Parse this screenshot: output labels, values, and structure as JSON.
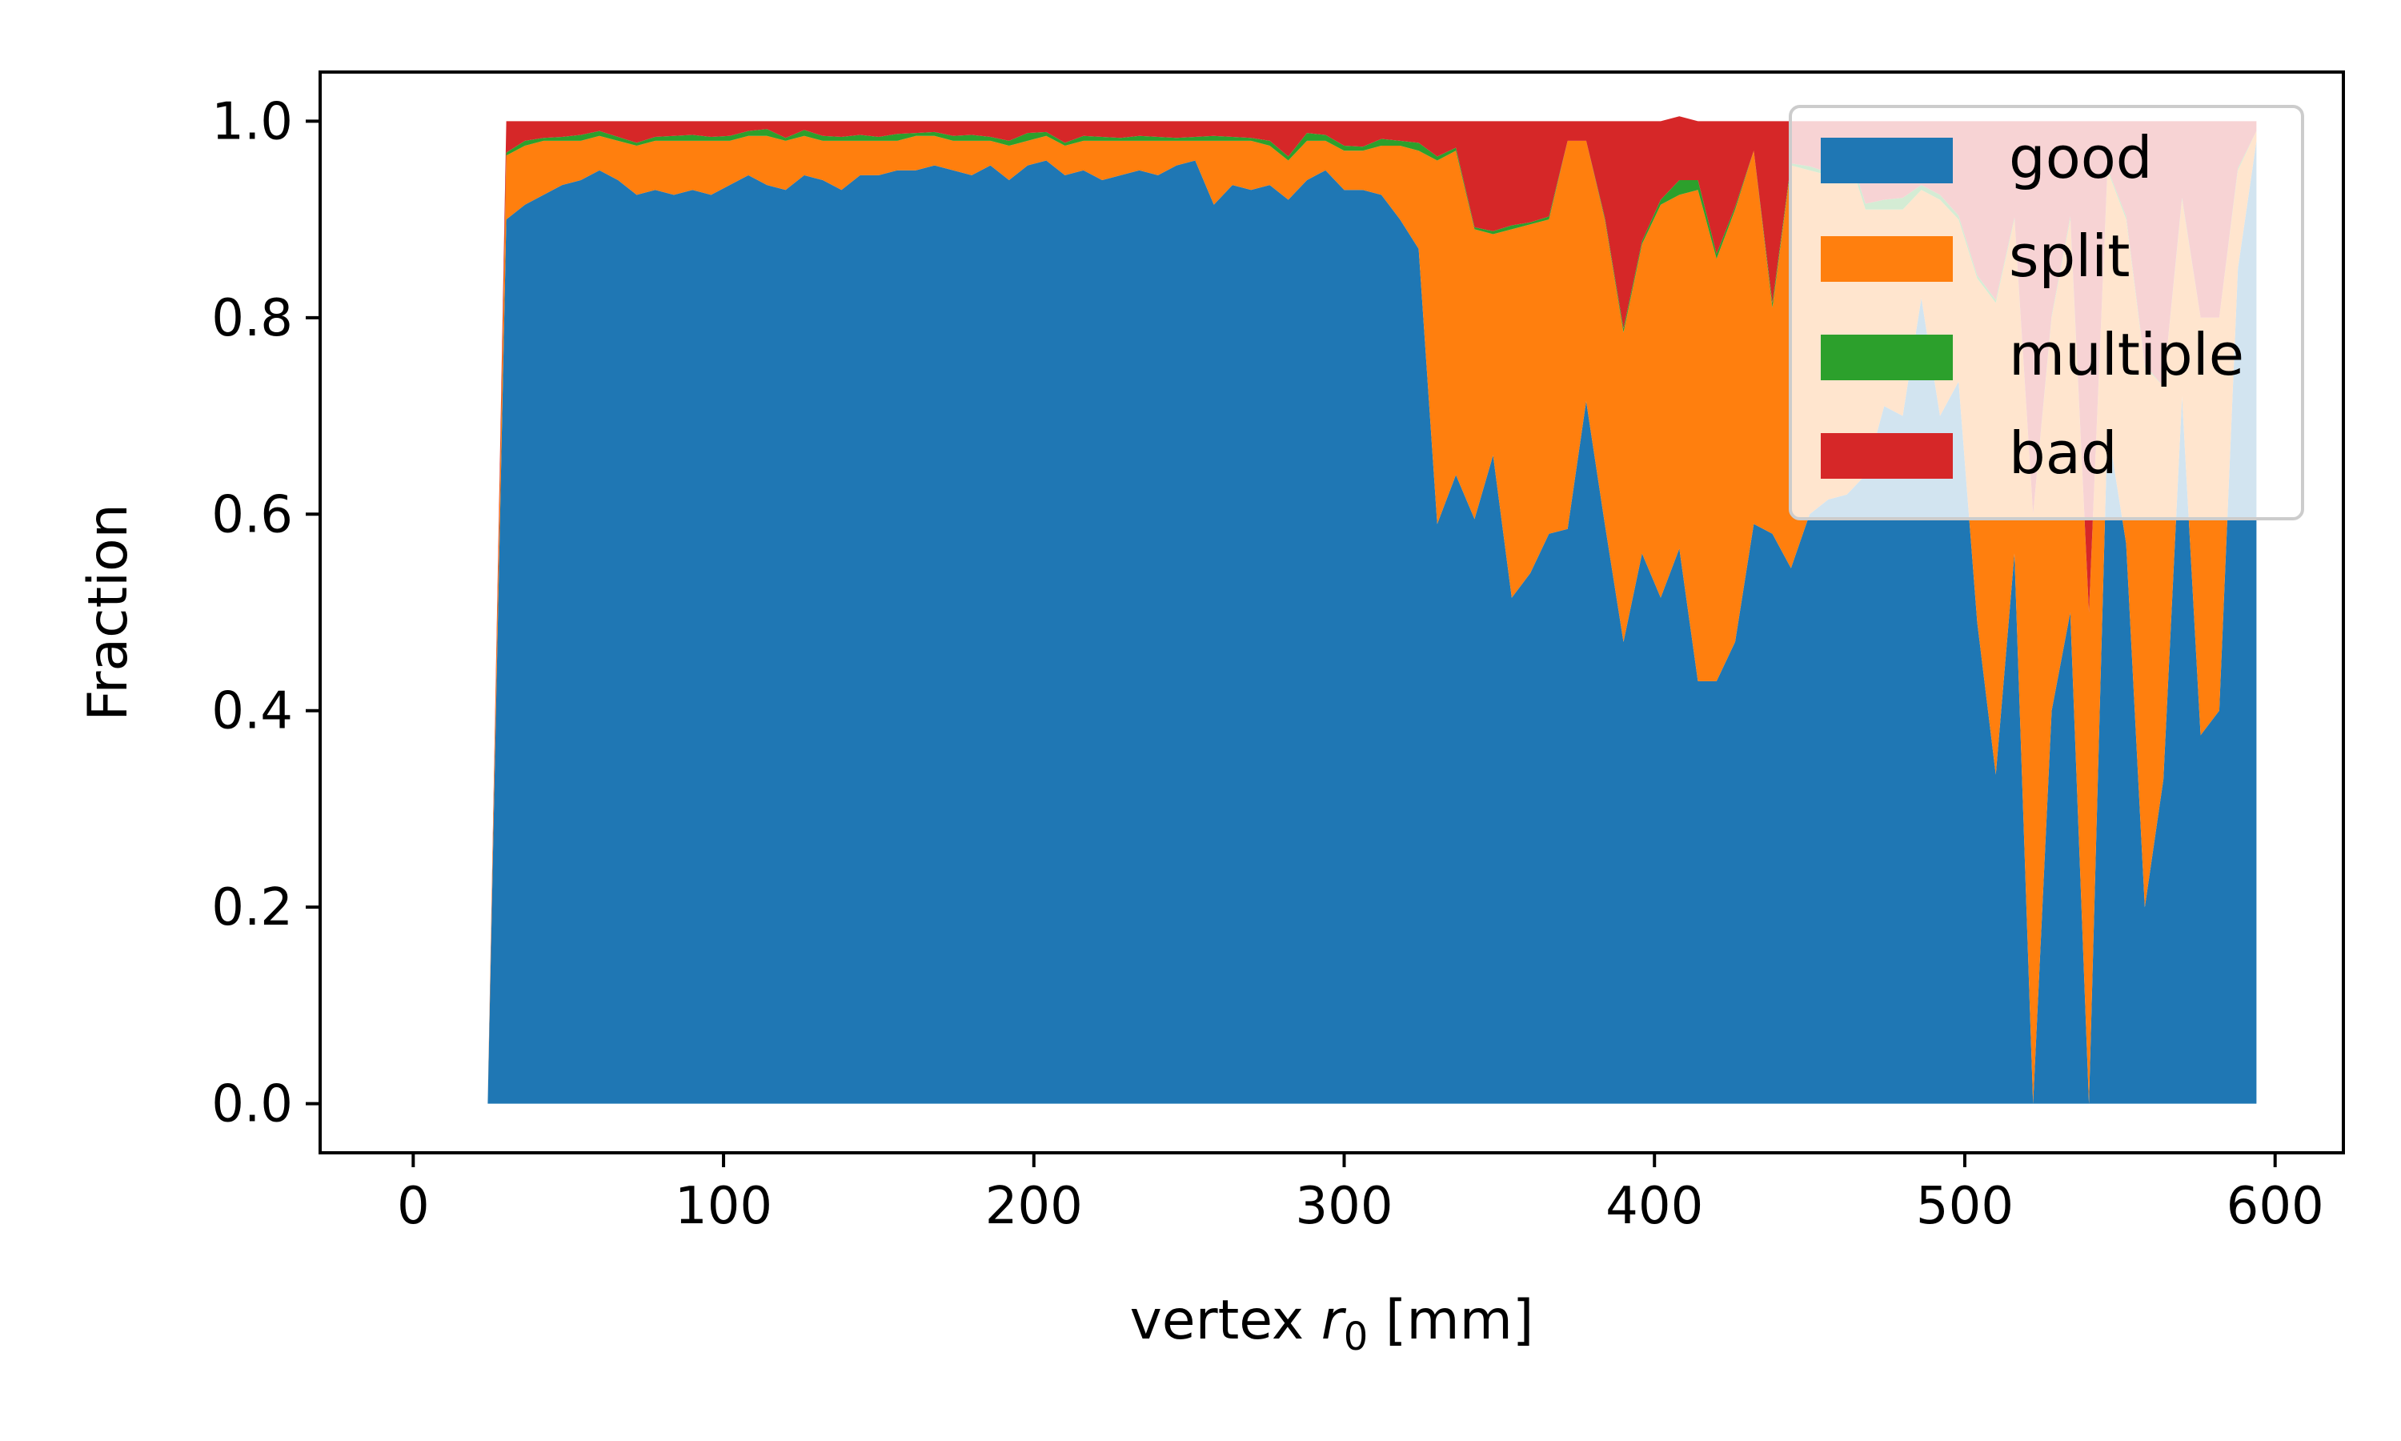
{
  "chart_data": {
    "type": "area",
    "stacked": true,
    "xlabel_main": "vertex ",
    "xlabel_var": "r",
    "xlabel_sub": "0",
    "xlabel_unit": " [mm]",
    "ylabel": "Fraction",
    "xlim": [
      -30,
      622
    ],
    "ylim": [
      -0.05,
      1.05
    ],
    "xticks": [
      0,
      100,
      200,
      300,
      400,
      500,
      600
    ],
    "yticks": [
      "0.0",
      "0.2",
      "0.4",
      "0.6",
      "0.8",
      "1.0"
    ],
    "grid": false,
    "legend_position": "top-right",
    "x": [
      24,
      30,
      36,
      42,
      48,
      54,
      60,
      66,
      72,
      78,
      84,
      90,
      96,
      102,
      108,
      114,
      120,
      126,
      132,
      138,
      144,
      150,
      156,
      162,
      168,
      174,
      180,
      186,
      192,
      198,
      204,
      210,
      216,
      222,
      228,
      234,
      240,
      246,
      252,
      258,
      264,
      270,
      276,
      282,
      288,
      294,
      300,
      306,
      312,
      318,
      324,
      330,
      336,
      342,
      348,
      354,
      360,
      366,
      372,
      378,
      384,
      390,
      396,
      402,
      408,
      414,
      420,
      426,
      432,
      438,
      444,
      450,
      456,
      462,
      468,
      474,
      480,
      486,
      492,
      498,
      504,
      510,
      516,
      522,
      528,
      534,
      540,
      546,
      552,
      558,
      564,
      570,
      576,
      582,
      588,
      594
    ],
    "series": [
      {
        "name": "good",
        "color": "#1f77b4",
        "values": [
          0,
          0.9,
          0.915,
          0.925,
          0.935,
          0.94,
          0.95,
          0.94,
          0.925,
          0.93,
          0.925,
          0.93,
          0.925,
          0.935,
          0.945,
          0.935,
          0.93,
          0.945,
          0.94,
          0.93,
          0.945,
          0.945,
          0.95,
          0.95,
          0.955,
          0.95,
          0.945,
          0.955,
          0.94,
          0.955,
          0.96,
          0.945,
          0.95,
          0.94,
          0.945,
          0.95,
          0.945,
          0.955,
          0.96,
          0.915,
          0.935,
          0.93,
          0.935,
          0.92,
          0.94,
          0.95,
          0.93,
          0.93,
          0.925,
          0.9,
          0.87,
          0.59,
          0.64,
          0.595,
          0.66,
          0.515,
          0.54,
          0.58,
          0.585,
          0.715,
          0.59,
          0.47,
          0.56,
          0.515,
          0.565,
          0.43,
          0.43,
          0.47,
          0.59,
          0.58,
          0.545,
          0.6,
          0.615,
          0.62,
          0.64,
          0.71,
          0.7,
          0.82,
          0.7,
          0.735,
          0.49,
          0.335,
          0.56,
          0.0,
          0.4,
          0.5,
          0.0,
          0.69,
          0.57,
          0.2,
          0.33,
          0.72,
          0.375,
          0.4,
          0.85,
          0.98
        ]
      },
      {
        "name": "split",
        "color": "#ff7f0e",
        "values": [
          0,
          0.065,
          0.06,
          0.055,
          0.045,
          0.04,
          0.035,
          0.04,
          0.05,
          0.05,
          0.055,
          0.05,
          0.055,
          0.045,
          0.04,
          0.05,
          0.05,
          0.04,
          0.04,
          0.05,
          0.035,
          0.035,
          0.03,
          0.035,
          0.03,
          0.03,
          0.035,
          0.025,
          0.035,
          0.025,
          0.025,
          0.03,
          0.03,
          0.04,
          0.035,
          0.03,
          0.035,
          0.025,
          0.02,
          0.065,
          0.045,
          0.05,
          0.04,
          0.04,
          0.04,
          0.03,
          0.04,
          0.04,
          0.05,
          0.075,
          0.1,
          0.37,
          0.33,
          0.295,
          0.225,
          0.375,
          0.355,
          0.32,
          0.395,
          0.265,
          0.31,
          0.315,
          0.315,
          0.4,
          0.36,
          0.5,
          0.43,
          0.44,
          0.38,
          0.23,
          0.41,
          0.35,
          0.33,
          0.35,
          0.27,
          0.2,
          0.21,
          0.11,
          0.22,
          0.165,
          0.35,
          0.48,
          0.34,
          0.6,
          0.4,
          0.4,
          0.5,
          0.26,
          0.33,
          0.55,
          0.4,
          0.2,
          0.425,
          0.4,
          0.1,
          0.01
        ]
      },
      {
        "name": "multiple",
        "color": "#2ca02c",
        "values": [
          0,
          0.003,
          0.005,
          0.003,
          0.004,
          0.006,
          0.005,
          0.004,
          0.003,
          0.004,
          0.005,
          0.006,
          0.004,
          0.005,
          0.005,
          0.007,
          0.003,
          0.006,
          0.005,
          0.004,
          0.006,
          0.004,
          0.007,
          0.003,
          0.004,
          0.005,
          0.006,
          0.004,
          0.005,
          0.008,
          0.004,
          0.003,
          0.005,
          0.004,
          0.003,
          0.005,
          0.004,
          0.003,
          0.004,
          0.005,
          0.004,
          0.003,
          0.005,
          0.004,
          0.008,
          0.006,
          0.005,
          0.004,
          0.007,
          0.005,
          0.008,
          0.004,
          0.003,
          0.002,
          0.003,
          0.004,
          0.002,
          0.003,
          0.0,
          0.0,
          0.002,
          0.004,
          0.003,
          0.005,
          0.015,
          0.01,
          0.005,
          0.003,
          0.0,
          0.005,
          0.002,
          0.004,
          0.003,
          0.005,
          0.006,
          0.01,
          0.012,
          0.005,
          0.005,
          0.004,
          0.003,
          0.003,
          0.002,
          0.0,
          0.002,
          0.003,
          0.0,
          0.002,
          0.003,
          0.002,
          0.0,
          0.002,
          0.0,
          0.0,
          0.002,
          0.0
        ]
      },
      {
        "name": "bad",
        "color": "#d62728",
        "values": [
          0,
          0.032,
          0.02,
          0.017,
          0.016,
          0.014,
          0.01,
          0.016,
          0.022,
          0.016,
          0.015,
          0.014,
          0.016,
          0.015,
          0.01,
          0.008,
          0.017,
          0.009,
          0.015,
          0.016,
          0.014,
          0.016,
          0.013,
          0.012,
          0.011,
          0.015,
          0.014,
          0.016,
          0.02,
          0.012,
          0.011,
          0.022,
          0.015,
          0.016,
          0.017,
          0.015,
          0.016,
          0.017,
          0.016,
          0.015,
          0.016,
          0.017,
          0.02,
          0.036,
          0.012,
          0.014,
          0.025,
          0.026,
          0.018,
          0.02,
          0.022,
          0.036,
          0.027,
          0.108,
          0.112,
          0.106,
          0.103,
          0.097,
          0.02,
          0.02,
          0.098,
          0.211,
          0.122,
          0.08,
          0.065,
          0.06,
          0.135,
          0.087,
          0.03,
          0.185,
          0.043,
          0.046,
          0.052,
          0.025,
          0.084,
          0.08,
          0.078,
          0.065,
          0.075,
          0.096,
          0.157,
          0.182,
          0.098,
          0.4,
          0.198,
          0.097,
          0.5,
          0.048,
          0.097,
          0.248,
          0.27,
          0.078,
          0.2,
          0.2,
          0.048,
          0.01
        ]
      }
    ]
  }
}
